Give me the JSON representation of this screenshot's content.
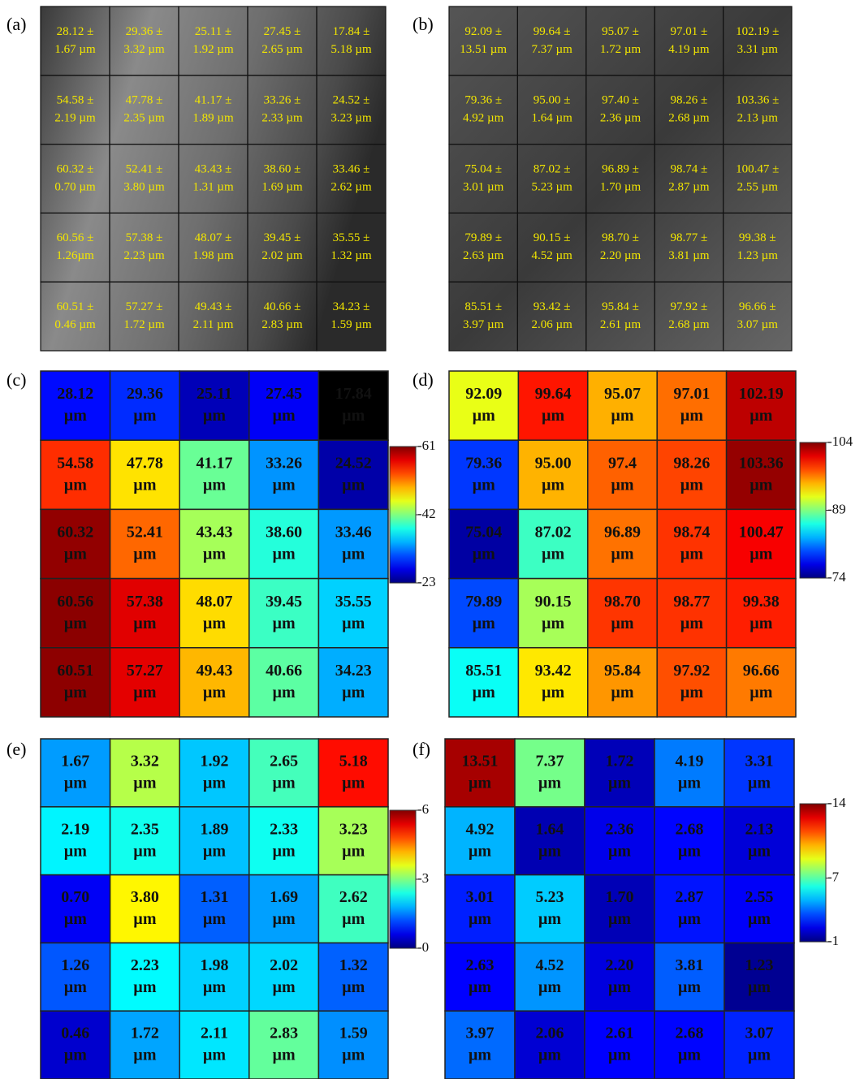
{
  "panels": [
    {
      "label": "(a)",
      "type": "micrograph",
      "cells": [
        [
          [
            "28.12 ±",
            "1.67 µm"
          ],
          [
            "29.36 ±",
            "3.32 µm"
          ],
          [
            "25.11 ±",
            "1.92 µm"
          ],
          [
            "27.45 ±",
            "2.65 µm"
          ],
          [
            "17.84 ±",
            "5.18 µm"
          ]
        ],
        [
          [
            "54.58 ±",
            "2.19 µm"
          ],
          [
            "47.78 ±",
            "2.35 µm"
          ],
          [
            "41.17 ±",
            "1.89 µm"
          ],
          [
            "33.26 ±",
            "2.33 µm"
          ],
          [
            "24.52 ±",
            "3.23 µm"
          ]
        ],
        [
          [
            "60.32 ±",
            "0.70 µm"
          ],
          [
            "52.41 ±",
            "3.80 µm"
          ],
          [
            "43.43 ±",
            "1.31 µm"
          ],
          [
            "38.60 ±",
            "1.69 µm"
          ],
          [
            "33.46 ±",
            "2.62 µm"
          ]
        ],
        [
          [
            "60.56 ±",
            "1.26µm"
          ],
          [
            "57.38 ±",
            "2.23 µm"
          ],
          [
            "48.07 ±",
            "1.98 µm"
          ],
          [
            "39.45 ±",
            "2.02 µm"
          ],
          [
            "35.55 ±",
            "1.32 µm"
          ]
        ],
        [
          [
            "60.51 ±",
            "0.46 µm"
          ],
          [
            "57.27 ±",
            "1.72 µm"
          ],
          [
            "49.43 ±",
            "2.11 µm"
          ],
          [
            "40.66 ±",
            "2.83 µm"
          ],
          [
            "34.23 ±",
            "1.59 µm"
          ]
        ]
      ]
    },
    {
      "label": "(b)",
      "type": "micrograph",
      "cells": [
        [
          [
            "92.09 ±",
            "13.51 µm"
          ],
          [
            "99.64 ±",
            "7.37 µm"
          ],
          [
            "95.07 ±",
            "1.72 µm"
          ],
          [
            "97.01 ±",
            "4.19 µm"
          ],
          [
            "102.19 ±",
            "3.31 µm"
          ]
        ],
        [
          [
            "79.36 ±",
            "4.92 µm"
          ],
          [
            "95.00 ±",
            "1.64 µm"
          ],
          [
            "97.40 ±",
            "2.36 µm"
          ],
          [
            "98.26 ±",
            "2.68 µm"
          ],
          [
            "103.36 ±",
            "2.13 µm"
          ]
        ],
        [
          [
            "75.04 ±",
            "3.01 µm"
          ],
          [
            "87.02 ±",
            "5.23 µm"
          ],
          [
            "96.89 ±",
            "1.70 µm"
          ],
          [
            "98.74 ±",
            "2.87 µm"
          ],
          [
            "100.47 ±",
            "2.55 µm"
          ]
        ],
        [
          [
            "79.89 ±",
            "2.63 µm"
          ],
          [
            "90.15 ±",
            "4.52 µm"
          ],
          [
            "98.70 ±",
            "2.20 µm"
          ],
          [
            "98.77 ±",
            "3.81 µm"
          ],
          [
            "99.38 ±",
            "1.23 µm"
          ]
        ],
        [
          [
            "85.51 ±",
            "3.97 µm"
          ],
          [
            "93.42 ±",
            "2.06 µm"
          ],
          [
            "95.84 ±",
            "2.61 µm"
          ],
          [
            "97.92 ±",
            "2.68 µm"
          ],
          [
            "96.66 ±",
            "3.07 µm"
          ]
        ]
      ]
    },
    {
      "label": "(c)",
      "type": "heatmap",
      "unit": "µm",
      "clim": [
        23,
        61
      ],
      "cticks": [
        {
          "value": 61,
          "label": "-61"
        },
        {
          "value": 42,
          "label": "-42"
        },
        {
          "value": 23,
          "label": "-23"
        }
      ],
      "values": [
        [
          28.12,
          29.36,
          25.11,
          27.45,
          17.84
        ],
        [
          54.58,
          47.78,
          41.17,
          33.26,
          24.52
        ],
        [
          60.32,
          52.41,
          43.43,
          {
            "value": 38.6,
            "label": "38.60"
          },
          33.46
        ],
        [
          60.56,
          57.38,
          48.07,
          39.45,
          35.55
        ],
        [
          60.51,
          57.27,
          49.43,
          40.66,
          34.23
        ]
      ]
    },
    {
      "label": "(d)",
      "type": "heatmap",
      "unit": "µm",
      "clim": [
        74,
        104
      ],
      "cticks": [
        {
          "value": 104,
          "label": "-104"
        },
        {
          "value": 89,
          "label": "-89"
        },
        {
          "value": 74,
          "label": "-74"
        }
      ],
      "values": [
        [
          92.09,
          99.64,
          95.07,
          97.01,
          102.19
        ],
        [
          79.36,
          {
            "value": 95,
            "label": "95.00"
          },
          97.4,
          98.26,
          103.36
        ],
        [
          75.04,
          87.02,
          96.89,
          98.74,
          100.47
        ],
        [
          79.89,
          90.15,
          {
            "value": 98.7,
            "label": "98.70"
          },
          98.77,
          99.38
        ],
        [
          85.51,
          93.42,
          95.84,
          97.92,
          96.66
        ]
      ]
    },
    {
      "label": "(e)",
      "type": "heatmap",
      "unit": "µm",
      "clim": [
        0,
        6
      ],
      "cticks": [
        {
          "value": 6,
          "label": "-6"
        },
        {
          "value": 3,
          "label": "-3"
        },
        {
          "value": 0,
          "label": "-0"
        }
      ],
      "values": [
        [
          1.67,
          3.32,
          1.92,
          2.65,
          5.18
        ],
        [
          2.19,
          2.35,
          1.89,
          2.33,
          3.23
        ],
        [
          {
            "value": 0.7,
            "label": "0.70"
          },
          {
            "value": 3.8,
            "label": "3.80"
          },
          1.31,
          1.69,
          2.62
        ],
        [
          1.26,
          2.23,
          1.98,
          2.02,
          1.32
        ],
        [
          0.46,
          1.72,
          2.11,
          2.83,
          1.59
        ]
      ]
    },
    {
      "label": "(f)",
      "type": "heatmap",
      "unit": "µm",
      "clim": [
        1,
        14
      ],
      "cticks": [
        {
          "value": 14,
          "label": "-14"
        },
        {
          "value": 7,
          "label": "-7"
        },
        {
          "value": 1,
          "label": "-1"
        }
      ],
      "values": [
        [
          13.51,
          7.37,
          1.72,
          4.19,
          3.31
        ],
        [
          4.92,
          1.64,
          2.36,
          2.68,
          2.13
        ],
        [
          3.01,
          5.23,
          {
            "value": 1.7,
            "label": "1.70"
          },
          2.87,
          2.55
        ],
        [
          2.63,
          4.52,
          {
            "value": 2.2,
            "label": "2.20"
          },
          3.81,
          1.23
        ],
        [
          3.97,
          2.06,
          2.61,
          2.68,
          3.07
        ]
      ]
    }
  ]
}
